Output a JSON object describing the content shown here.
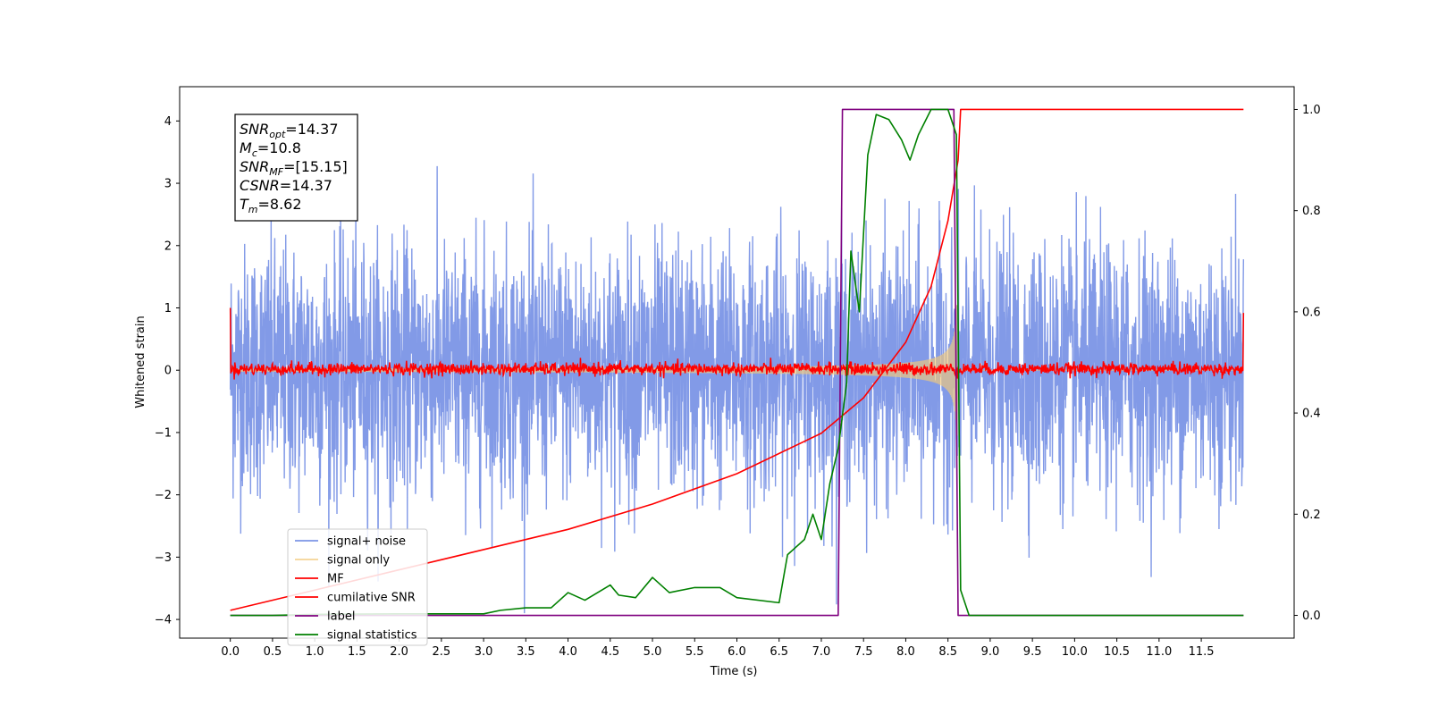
{
  "chart_data": {
    "type": "line",
    "xlabel": "Time (s)",
    "ylabel_left": "Whitened strain",
    "ylabel_right": "",
    "x_range": [
      -0.6,
      12.6
    ],
    "y_left_range": [
      -4.3,
      4.55
    ],
    "y_right_range": [
      -0.045,
      1.045
    ],
    "x_ticks": [
      "0.0",
      "0.5",
      "1.0",
      "1.5",
      "2.0",
      "2.5",
      "3.0",
      "3.5",
      "4.0",
      "4.5",
      "5.0",
      "5.5",
      "6.0",
      "6.5",
      "7.0",
      "7.5",
      "8.0",
      "8.5",
      "9.0",
      "9.5",
      "10.0",
      "10.5",
      "11.0",
      "11.5"
    ],
    "y_left_ticks": [
      "−4",
      "−3",
      "−2",
      "−1",
      "0",
      "1",
      "2",
      "3",
      "4"
    ],
    "y_right_ticks": [
      "0.0",
      "0.2",
      "0.4",
      "0.6",
      "0.8",
      "1.0"
    ],
    "annotation": [
      {
        "base": "SNR",
        "sub": "opt",
        "rest": "=14.37"
      },
      {
        "base": "M",
        "sub": "c",
        "rest": "=10.8"
      },
      {
        "base": "SNR",
        "sub": "MF",
        "rest": "=[15.15]"
      },
      {
        "base": "CSNR",
        "sub": "",
        "rest": "=14.37"
      },
      {
        "base": "T",
        "sub": "m",
        "rest": "=8.62"
      }
    ],
    "legend_position": "lower-left",
    "series": [
      {
        "name": "signal+ noise",
        "color": "#7b95e6",
        "axis": "left",
        "kind": "gaussian noise, sigma ≈ 1.0, t 0–12 s"
      },
      {
        "name": "signal only",
        "color": "#f2c97a",
        "axis": "left",
        "kind": "chirp, amplitude growing to ≈1.0 at 8.62 s, zero after"
      },
      {
        "name": "MF",
        "color": "#ff0000",
        "axis": "left",
        "kind": "matched-filter output ≈ 0 ± 0.1, spikes to 1.0 at edges"
      },
      {
        "name": "cumilative SNR",
        "color": "#ff0000",
        "axis": "right",
        "points": [
          [
            0.0,
            0.01
          ],
          [
            1.0,
            0.05
          ],
          [
            2.0,
            0.09
          ],
          [
            3.0,
            0.13
          ],
          [
            4.0,
            0.17
          ],
          [
            5.0,
            0.22
          ],
          [
            6.0,
            0.28
          ],
          [
            6.5,
            0.32
          ],
          [
            7.0,
            0.36
          ],
          [
            7.5,
            0.43
          ],
          [
            8.0,
            0.54
          ],
          [
            8.3,
            0.65
          ],
          [
            8.5,
            0.78
          ],
          [
            8.62,
            0.9
          ],
          [
            8.65,
            1.0
          ],
          [
            12.0,
            1.0
          ]
        ]
      },
      {
        "name": "label",
        "color": "#7f007f",
        "axis": "right",
        "points": [
          [
            0.0,
            0.0
          ],
          [
            7.2,
            0.0
          ],
          [
            7.25,
            1.0
          ],
          [
            8.57,
            1.0
          ],
          [
            8.62,
            0.0
          ],
          [
            12.0,
            0.0
          ]
        ]
      },
      {
        "name": "signal statistics",
        "color": "#008000",
        "axis": "right",
        "points": [
          [
            0.0,
            0.0
          ],
          [
            0.5,
            0.0
          ],
          [
            1.0,
            0.002
          ],
          [
            2.0,
            0.003
          ],
          [
            3.0,
            0.003
          ],
          [
            3.2,
            0.01
          ],
          [
            3.5,
            0.015
          ],
          [
            3.8,
            0.015
          ],
          [
            4.0,
            0.045
          ],
          [
            4.2,
            0.03
          ],
          [
            4.5,
            0.06
          ],
          [
            4.6,
            0.04
          ],
          [
            4.8,
            0.035
          ],
          [
            5.0,
            0.075
          ],
          [
            5.2,
            0.045
          ],
          [
            5.5,
            0.055
          ],
          [
            5.8,
            0.055
          ],
          [
            6.0,
            0.035
          ],
          [
            6.5,
            0.025
          ],
          [
            6.6,
            0.12
          ],
          [
            6.8,
            0.15
          ],
          [
            6.9,
            0.2
          ],
          [
            7.0,
            0.15
          ],
          [
            7.1,
            0.26
          ],
          [
            7.2,
            0.33
          ],
          [
            7.3,
            0.46
          ],
          [
            7.35,
            0.72
          ],
          [
            7.45,
            0.6
          ],
          [
            7.55,
            0.91
          ],
          [
            7.65,
            0.99
          ],
          [
            7.8,
            0.98
          ],
          [
            7.95,
            0.94
          ],
          [
            8.05,
            0.9
          ],
          [
            8.15,
            0.95
          ],
          [
            8.3,
            1.0
          ],
          [
            8.5,
            1.0
          ],
          [
            8.6,
            0.95
          ],
          [
            8.65,
            0.05
          ],
          [
            8.75,
            0.0
          ],
          [
            12.0,
            0.0
          ]
        ]
      }
    ]
  }
}
